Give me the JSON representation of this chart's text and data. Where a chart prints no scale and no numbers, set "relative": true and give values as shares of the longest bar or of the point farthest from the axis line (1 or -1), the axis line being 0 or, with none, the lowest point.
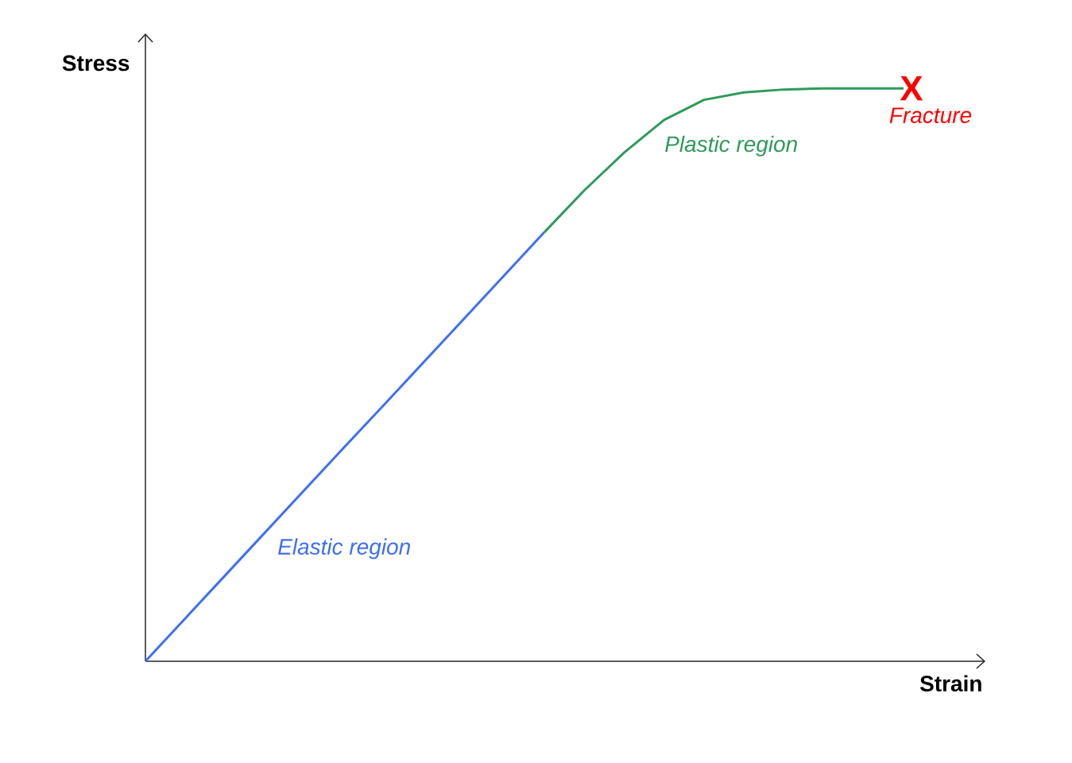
{
  "chart_data": {
    "type": "line",
    "relative": true,
    "xlabel": "Strain",
    "ylabel": "Stress",
    "marker": "none",
    "line_style": "solid",
    "categories": [
      null,
      null,
      null,
      null,
      null,
      null,
      null,
      null,
      null,
      null,
      null,
      null,
      null,
      null,
      null,
      null,
      null,
      null,
      null,
      null
    ],
    "series": [
      {
        "name": "Elastic region",
        "color": "#3f6ef5",
        "values": [
          0,
          0.075,
          0.15,
          0.225,
          0.3,
          0.375,
          0.449,
          0.524,
          0.599,
          0.674,
          0.749,
          null,
          null,
          null,
          null,
          null,
          null,
          null,
          null,
          null
        ]
      },
      {
        "name": "Plastic region",
        "color": "#2e9a5a",
        "values": [
          null,
          null,
          null,
          null,
          null,
          null,
          null,
          null,
          null,
          null,
          0.749,
          0.822,
          0.888,
          0.945,
          0.98,
          0.993,
          0.998,
          1.0,
          1.0,
          1.0
        ]
      }
    ],
    "annotations": [
      "X",
      "Fracture"
    ]
  }
}
